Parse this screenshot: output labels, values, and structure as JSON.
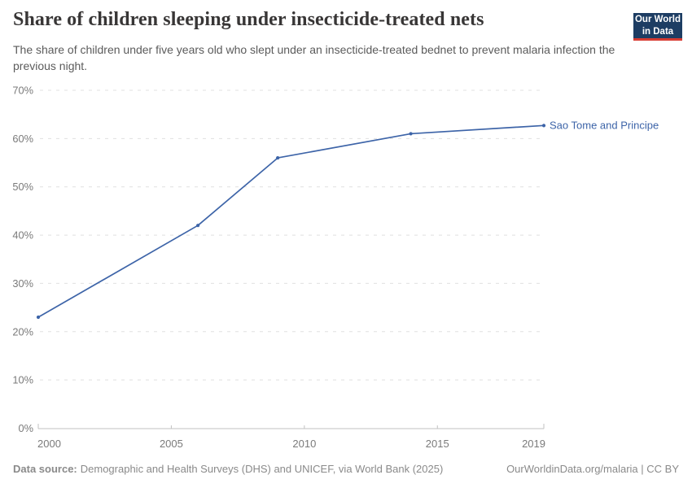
{
  "header": {
    "title": "Share of children sleeping under insecticide-treated nets",
    "subtitle": "The share of children under five years old who slept under an insecticide-treated bednet to prevent malaria infection the previous night.",
    "logo": {
      "line1": "Our World",
      "line2": "in Data",
      "bg_color": "#1d3d63",
      "bar_color": "#d73c32"
    }
  },
  "chart_data": {
    "type": "line",
    "title": "Share of children sleeping under insecticide-treated nets",
    "xlabel": "",
    "ylabel": "",
    "x": [
      2000,
      2006,
      2009,
      2014,
      2019
    ],
    "series": [
      {
        "name": "Sao Tome and Principe",
        "color": "#3d64a8",
        "values": [
          23,
          42,
          56,
          61,
          62.7
        ]
      }
    ],
    "xlim": [
      2000,
      2019
    ],
    "ylim": [
      0,
      70
    ],
    "x_ticks": [
      2000,
      2005,
      2010,
      2015,
      2019
    ],
    "y_ticks": [
      0,
      10,
      20,
      30,
      40,
      50,
      60,
      70
    ],
    "y_tick_suffix": "%",
    "grid": "horizontal-dashed",
    "legend_position": "right-of-line"
  },
  "footer": {
    "source_label": "Data source:",
    "source_text": "Demographic and Health Surveys (DHS) and UNICEF, via World Bank (2025)",
    "rights_text": "OurWorldinData.org/malaria | CC BY"
  },
  "colors": {
    "accent_line": "#3d64a8",
    "grid": "#e0e0e0",
    "axis": "#c2c2c2",
    "tick_label": "#7a7a7a",
    "title": "#383636",
    "subtitle": "#5b5b5b",
    "footer": "#8a8a8a"
  }
}
